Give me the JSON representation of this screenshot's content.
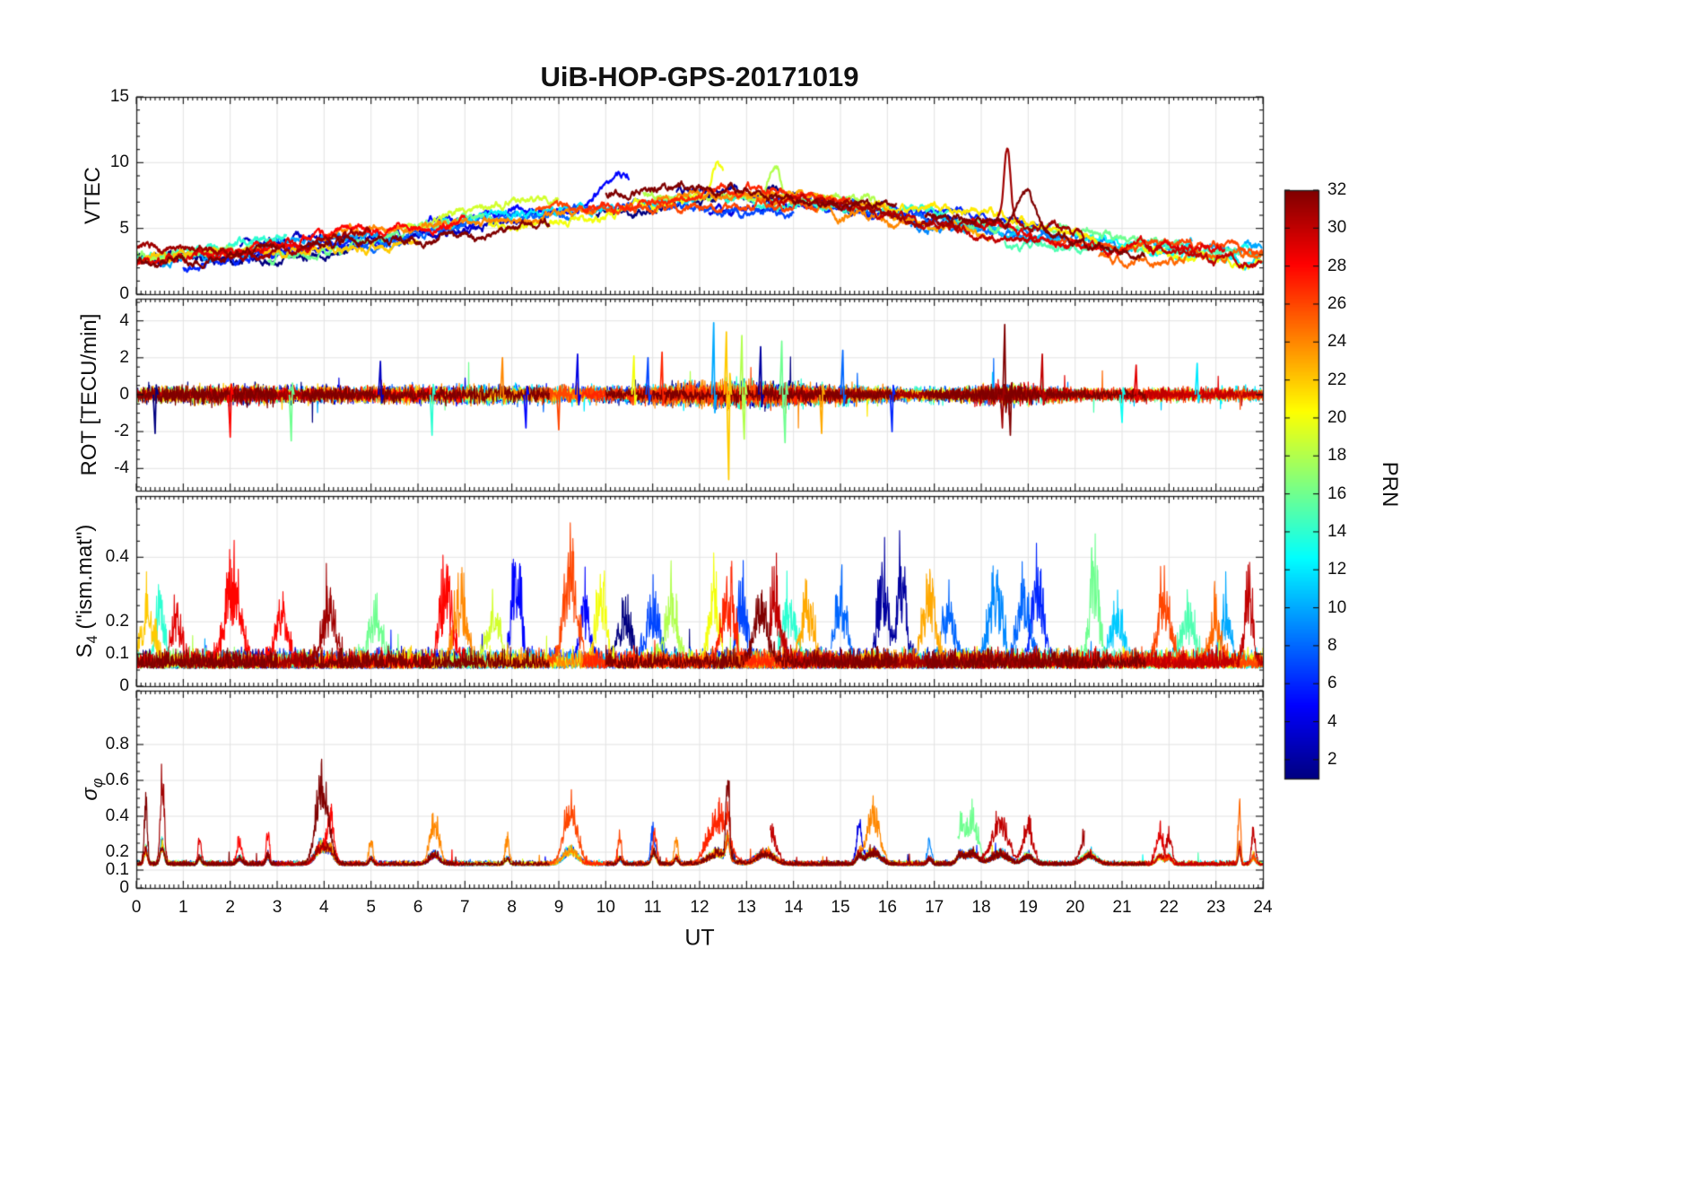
{
  "title": "UiB-HOP-GPS-20171019",
  "xlabel": "UT",
  "x_ticks": [
    0,
    1,
    2,
    3,
    4,
    5,
    6,
    7,
    8,
    9,
    10,
    11,
    12,
    13,
    14,
    15,
    16,
    17,
    18,
    19,
    20,
    21,
    22,
    23,
    24
  ],
  "labels": {
    "vtec": "VTEC",
    "rot": "ROT [TECU/min]",
    "s4": {
      "main": "S",
      "sub": "4",
      "rest": " (\"ism.mat\")"
    },
    "sigma": {
      "main": "σ",
      "sub": "φ"
    }
  },
  "colorbar": {
    "label": "PRN",
    "min": 1,
    "max": 32,
    "ticks": [
      2,
      4,
      6,
      8,
      10,
      12,
      14,
      16,
      18,
      20,
      22,
      24,
      26,
      28,
      30,
      32
    ],
    "colormap": "jet"
  },
  "chart_data": {
    "type": "line",
    "colormap": "jet",
    "color_dimension": "PRN",
    "seed": 20171019,
    "x_axis": {
      "label": "UT",
      "range": [
        0,
        24
      ],
      "ticks": [
        0,
        1,
        2,
        3,
        4,
        5,
        6,
        7,
        8,
        9,
        10,
        11,
        12,
        13,
        14,
        15,
        16,
        17,
        18,
        19,
        20,
        21,
        22,
        23,
        24
      ]
    },
    "tracks_format": [
      "prn",
      "start_ut",
      "end_ut",
      "offset"
    ],
    "tracks": [
      [
        1,
        0,
        4.5,
        -0.3
      ],
      [
        29,
        0,
        3.8,
        -0.2
      ],
      [
        14,
        0,
        3.2,
        0.4
      ],
      [
        17,
        0,
        2.5,
        0.6
      ],
      [
        22,
        0,
        6,
        -0.2
      ],
      [
        31,
        0,
        5,
        0.5
      ],
      [
        32,
        0,
        3,
        0.1
      ],
      [
        2,
        0,
        2.8,
        0.1
      ],
      [
        18,
        0,
        1.8,
        0.1
      ],
      [
        10,
        0.5,
        5.5,
        0.1
      ],
      [
        6,
        1,
        5.8,
        -0.4
      ],
      [
        28,
        1.5,
        7,
        0.4
      ],
      [
        3,
        2.2,
        8.5,
        0.2
      ],
      [
        4,
        2.5,
        7.2,
        0.2
      ],
      [
        16,
        2.8,
        7.6,
        -0.1
      ],
      [
        32,
        3.5,
        8.8,
        -0.3
      ],
      [
        24,
        4,
        9.8,
        0.3
      ],
      [
        8,
        4.8,
        9.3,
        -0.2
      ],
      [
        19,
        5.5,
        9,
        0.8
      ],
      [
        5,
        6.2,
        10.5,
        0.5
      ],
      [
        12,
        6.5,
        12,
        0.2
      ],
      [
        20,
        7.5,
        12.5,
        -0.3
      ],
      [
        26,
        8.5,
        14.5,
        -0.2
      ],
      [
        7,
        9,
        14,
        -0.4
      ],
      [
        27,
        9.5,
        15.2,
        0.3
      ],
      [
        1,
        9.8,
        14.8,
        0
      ],
      [
        32,
        10,
        16.2,
        0.6
      ],
      [
        18,
        10.8,
        15.8,
        0.5
      ],
      [
        24,
        11,
        16.5,
        -0.1
      ],
      [
        2,
        11.5,
        17.5,
        0.3
      ],
      [
        4,
        12.2,
        16,
        -0.6
      ],
      [
        14,
        12.5,
        17.3,
        0.2
      ],
      [
        23,
        12.8,
        18.2,
        0.1
      ],
      [
        6,
        13,
        19.5,
        0.4
      ],
      [
        30,
        13.5,
        19.2,
        -0.2
      ],
      [
        31,
        14.5,
        20.2,
        0.3
      ],
      [
        8,
        14.8,
        19.8,
        0.1
      ],
      [
        21,
        15.5,
        20.5,
        0.6
      ],
      [
        9,
        16.5,
        21,
        -0.1
      ],
      [
        32,
        16.8,
        21.5,
        0
      ],
      [
        11,
        17,
        22.5,
        0.1
      ],
      [
        16,
        17.5,
        22.3,
        0.4
      ],
      [
        29,
        17.8,
        23.2,
        0.2
      ],
      [
        15,
        18.5,
        23.5,
        -0.3
      ],
      [
        26,
        19.5,
        24,
        0.1
      ],
      [
        13,
        20,
        24,
        0.2
      ],
      [
        25,
        20.5,
        24,
        -0.4
      ],
      [
        20,
        21,
        24,
        0
      ],
      [
        30,
        21.5,
        24,
        -0.5
      ],
      [
        10,
        21.8,
        24,
        0.3
      ],
      [
        12,
        22,
        24,
        -0.2
      ]
    ],
    "panels": [
      {
        "id": "vtec",
        "ylabel": "VTEC",
        "ylim": [
          0,
          15
        ],
        "yticks": [
          0,
          5,
          10,
          15
        ],
        "units": "TECU",
        "diurnal": {
          "night": 2.6,
          "amp": 4.6,
          "peak_t": 12.5,
          "width": 7
        },
        "peaks_format": [
          "prn",
          "t",
          "amplitude",
          "width_h"
        ],
        "peaks": [
          [
            31,
            18.55,
            6,
            0.1
          ],
          [
            32,
            18.95,
            3.2,
            0.25
          ],
          [
            18,
            13.6,
            3,
            0.18
          ],
          [
            20,
            12.4,
            2.6,
            0.2
          ],
          [
            5,
            10.3,
            2.2,
            0.5
          ]
        ]
      },
      {
        "id": "rot",
        "ylabel": "ROT [TECU/min]",
        "ylim": [
          -5.2,
          5.2
        ],
        "yticks": [
          -4,
          -2,
          0,
          2,
          4
        ],
        "events_format": [
          "prn",
          "t",
          "amplitude"
        ],
        "events": [
          [
            10,
            12.3,
            3.9
          ],
          [
            22,
            12.62,
            -4.6
          ],
          [
            22,
            12.57,
            3.4
          ],
          [
            32,
            18.5,
            3.8
          ],
          [
            32,
            18.62,
            -2.2
          ],
          [
            16,
            13.75,
            2.9
          ],
          [
            16,
            13.82,
            -2.6
          ],
          [
            2,
            13.3,
            2.6
          ],
          [
            8,
            15.05,
            2.4
          ],
          [
            28,
            2,
            -2.3
          ],
          [
            16,
            3.3,
            -2.5
          ],
          [
            1,
            0.4,
            -2.1
          ],
          [
            30,
            19.3,
            2.2
          ],
          [
            12,
            22.6,
            1.7
          ],
          [
            6,
            16.1,
            -2
          ],
          [
            24,
            7.8,
            2
          ],
          [
            4,
            9.4,
            2.2
          ],
          [
            14,
            6.3,
            -2.2
          ],
          [
            20,
            10.6,
            2.1
          ],
          [
            31,
            18.45,
            -1.8
          ],
          [
            27,
            11.2,
            2.3
          ],
          [
            18,
            12.9,
            3.2
          ],
          [
            18,
            12.95,
            -2.4
          ],
          [
            26,
            9,
            -1.9
          ],
          [
            3,
            5.2,
            1.8
          ],
          [
            29,
            21.3,
            1.6
          ],
          [
            5,
            8.3,
            -1.8
          ],
          [
            13,
            21,
            -1.5
          ],
          [
            7,
            10.9,
            2
          ],
          [
            23,
            14.6,
            -2.1
          ]
        ]
      },
      {
        "id": "s4",
        "ylabel": "S4 (\"ism.mat\")",
        "ylim": [
          0,
          0.59
        ],
        "yticks": [
          0,
          0.1,
          0.2,
          0.4
        ],
        "events_format": [
          "prn",
          "t",
          "peak",
          "width_h"
        ],
        "events": [
          [
            22,
            0.25,
            0.3,
            0.2
          ],
          [
            14,
            0.5,
            0.32,
            0.15
          ],
          [
            29,
            0.85,
            0.3,
            0.15
          ],
          [
            28,
            2.05,
            0.45,
            0.25
          ],
          [
            28,
            3.1,
            0.3,
            0.2
          ],
          [
            31,
            4.1,
            0.34,
            0.2
          ],
          [
            16,
            5.1,
            0.3,
            0.2
          ],
          [
            28,
            6.6,
            0.43,
            0.2
          ],
          [
            24,
            6.9,
            0.38,
            0.2
          ],
          [
            19,
            7.6,
            0.3,
            0.2
          ],
          [
            5,
            8.1,
            0.49,
            0.15
          ],
          [
            26,
            9.25,
            0.52,
            0.2
          ],
          [
            5,
            9.55,
            0.36,
            0.15
          ],
          [
            20,
            9.9,
            0.45,
            0.15
          ],
          [
            1,
            10.4,
            0.3,
            0.2
          ],
          [
            7,
            11,
            0.32,
            0.2
          ],
          [
            18,
            11.4,
            0.34,
            0.2
          ],
          [
            20,
            12.3,
            0.41,
            0.15
          ],
          [
            27,
            12.6,
            0.4,
            0.2
          ],
          [
            7,
            12.9,
            0.4,
            0.15
          ],
          [
            32,
            13.3,
            0.36,
            0.2
          ],
          [
            30,
            13.6,
            0.37,
            0.2
          ],
          [
            14,
            13.9,
            0.34,
            0.2
          ],
          [
            23,
            14.3,
            0.33,
            0.2
          ],
          [
            8,
            15,
            0.36,
            0.2
          ],
          [
            2,
            15.9,
            0.49,
            0.15
          ],
          [
            2,
            16.3,
            0.46,
            0.15
          ],
          [
            23,
            16.9,
            0.39,
            0.2
          ],
          [
            8,
            17.3,
            0.31,
            0.2
          ],
          [
            9,
            18.3,
            0.43,
            0.2
          ],
          [
            8,
            18.9,
            0.4,
            0.2
          ],
          [
            6,
            19.2,
            0.42,
            0.2
          ],
          [
            16,
            20.4,
            0.48,
            0.15
          ],
          [
            11,
            20.9,
            0.3,
            0.2
          ],
          [
            26,
            21.9,
            0.35,
            0.2
          ],
          [
            15,
            22.4,
            0.3,
            0.2
          ],
          [
            25,
            23,
            0.3,
            0.15
          ],
          [
            10,
            23.2,
            0.33,
            0.15
          ],
          [
            30,
            23.7,
            0.39,
            0.12
          ]
        ]
      },
      {
        "id": "sigma_phi",
        "ylabel": "sigma_phi",
        "ylim": [
          0,
          1.1
        ],
        "yticks": [
          0,
          0.1,
          0.2,
          0.4,
          0.6,
          0.8
        ],
        "events_format": [
          "prn",
          "t",
          "peak",
          "width_h"
        ],
        "events": [
          [
            32,
            0.2,
            0.62,
            0.05
          ],
          [
            31,
            0.55,
            0.82,
            0.06
          ],
          [
            29,
            1.35,
            0.28,
            0.05
          ],
          [
            28,
            2.2,
            0.25,
            0.08
          ],
          [
            28,
            2.8,
            0.35,
            0.05
          ],
          [
            32,
            3.95,
            0.75,
            0.18
          ],
          [
            28,
            4.15,
            0.4,
            0.1
          ],
          [
            24,
            5,
            0.22,
            0.06
          ],
          [
            24,
            6.35,
            0.4,
            0.15
          ],
          [
            24,
            7.9,
            0.25,
            0.06
          ],
          [
            26,
            9.25,
            0.57,
            0.2
          ],
          [
            26,
            10.3,
            0.25,
            0.06
          ],
          [
            7,
            11,
            0.3,
            0.06
          ],
          [
            27,
            11.05,
            0.28,
            0.06
          ],
          [
            24,
            11.5,
            0.25,
            0.06
          ],
          [
            27,
            12.4,
            0.45,
            0.3
          ],
          [
            32,
            12.6,
            0.9,
            0.05
          ],
          [
            30,
            13.4,
            0.45,
            0.25
          ],
          [
            4,
            15.4,
            0.35,
            0.08
          ],
          [
            24,
            15.7,
            0.5,
            0.2
          ],
          [
            9,
            16.9,
            0.25,
            0.06
          ],
          [
            16,
            17.55,
            0.35,
            0.1
          ],
          [
            16,
            17.8,
            0.45,
            0.18
          ],
          [
            30,
            18.4,
            0.42,
            0.25
          ],
          [
            30,
            19,
            0.35,
            0.15
          ],
          [
            31,
            20.3,
            0.38,
            0.2
          ],
          [
            29,
            21.8,
            0.33,
            0.1
          ],
          [
            30,
            22,
            0.3,
            0.08
          ],
          [
            25,
            23.5,
            0.75,
            0.035
          ],
          [
            30,
            23.8,
            0.3,
            0.06
          ]
        ]
      }
    ]
  }
}
